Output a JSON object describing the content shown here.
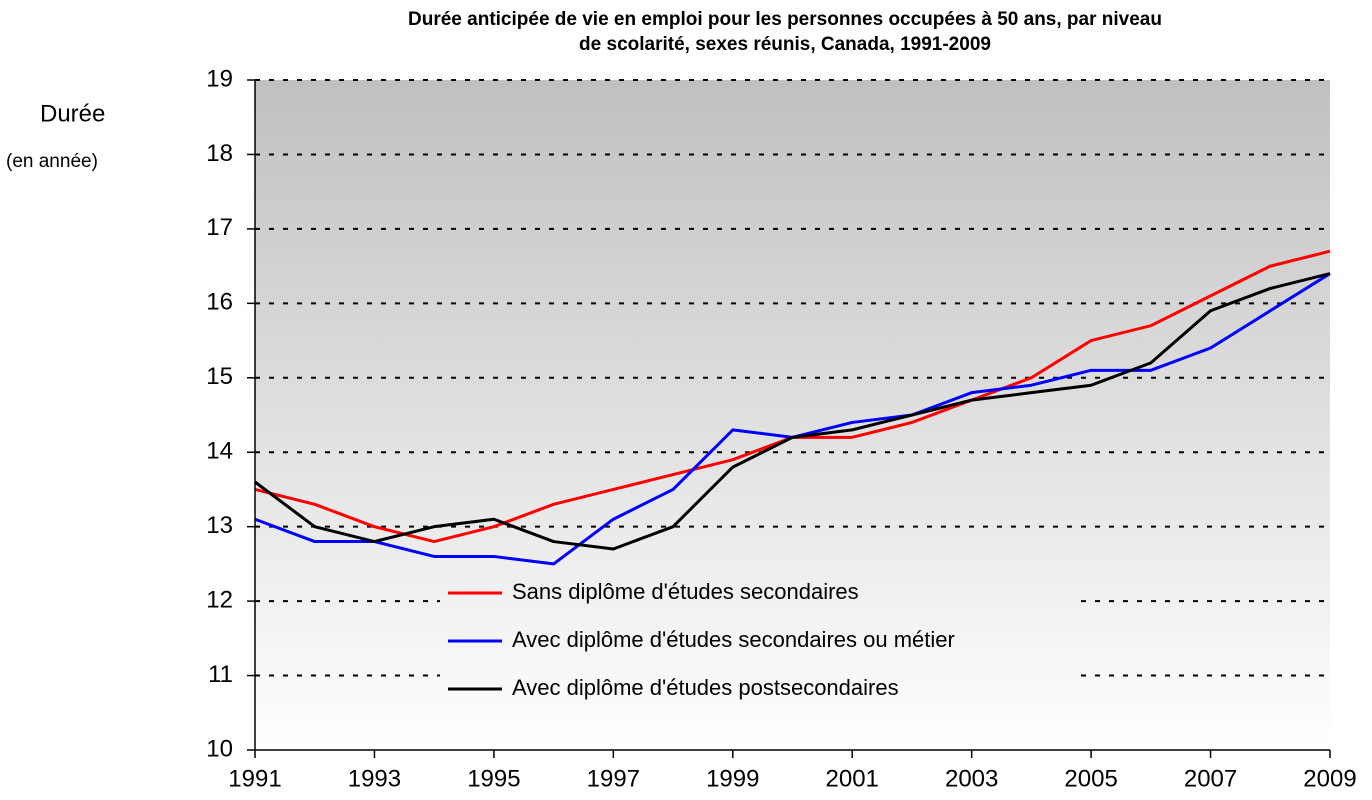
{
  "chart_data": {
    "type": "line",
    "title": [
      "Durée anticipée de vie en emploi pour les personnes occupées à 50 ans, par niveau",
      "de scolarité, sexes réunis, Canada, 1991-2009"
    ],
    "ylabel": [
      "Durée",
      "(en année)"
    ],
    "x": [
      1991,
      1992,
      1993,
      1994,
      1995,
      1996,
      1997,
      1998,
      1999,
      2000,
      2001,
      2002,
      2003,
      2004,
      2005,
      2006,
      2007,
      2008,
      2009
    ],
    "series": [
      {
        "name": "Sans diplôme d'études secondaires",
        "color": "#ff0000",
        "values": [
          13.5,
          13.3,
          13.0,
          12.8,
          13.0,
          13.3,
          13.5,
          13.7,
          13.9,
          14.2,
          14.2,
          14.4,
          14.7,
          15.0,
          15.5,
          15.7,
          16.1,
          16.5,
          16.7
        ]
      },
      {
        "name": "Avec diplôme d'études secondaires ou métier",
        "color": "#0000ff",
        "values": [
          13.1,
          12.8,
          12.8,
          12.6,
          12.6,
          12.5,
          13.1,
          13.5,
          14.3,
          14.2,
          14.4,
          14.5,
          14.8,
          14.9,
          15.1,
          15.1,
          15.4,
          15.9,
          16.4
        ]
      },
      {
        "name": "Avec diplôme d'études postsecondaires",
        "color": "#000000",
        "values": [
          13.6,
          13.0,
          12.8,
          13.0,
          13.1,
          12.8,
          12.7,
          13.0,
          13.8,
          14.2,
          14.3,
          14.5,
          14.7,
          14.8,
          14.9,
          15.2,
          15.9,
          16.2,
          16.4
        ]
      }
    ],
    "xlim": [
      1991,
      2009
    ],
    "xticks": [
      1991,
      1993,
      1995,
      1997,
      1999,
      2001,
      2003,
      2005,
      2007,
      2009
    ],
    "ylim": [
      10,
      19
    ],
    "yticks": [
      10,
      11,
      12,
      13,
      14,
      15,
      16,
      17,
      18,
      19
    ],
    "grid": true,
    "legend": "lower center"
  }
}
